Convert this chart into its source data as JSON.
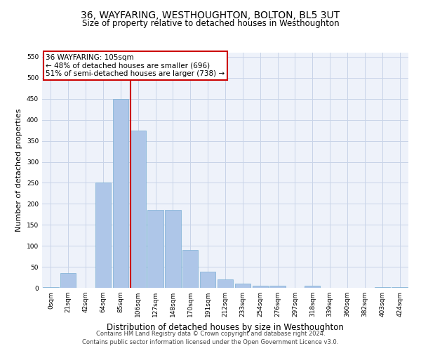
{
  "title": "36, WAYFARING, WESTHOUGHTON, BOLTON, BL5 3UT",
  "subtitle": "Size of property relative to detached houses in Westhoughton",
  "xlabel": "Distribution of detached houses by size in Westhoughton",
  "ylabel": "Number of detached properties",
  "bar_labels": [
    "0sqm",
    "21sqm",
    "42sqm",
    "64sqm",
    "85sqm",
    "106sqm",
    "127sqm",
    "148sqm",
    "170sqm",
    "191sqm",
    "212sqm",
    "233sqm",
    "254sqm",
    "276sqm",
    "297sqm",
    "318sqm",
    "339sqm",
    "360sqm",
    "382sqm",
    "403sqm",
    "424sqm"
  ],
  "bar_values": [
    2,
    35,
    0,
    250,
    450,
    375,
    185,
    185,
    90,
    38,
    20,
    10,
    5,
    5,
    0,
    5,
    0,
    0,
    0,
    2,
    2
  ],
  "bar_color": "#aec6e8",
  "bar_edgecolor": "#7aafd4",
  "grid_color": "#c8d4e8",
  "bg_color": "#eef2fa",
  "annotation_text_line1": "36 WAYFARING: 105sqm",
  "annotation_text_line2": "← 48% of detached houses are smaller (696)",
  "annotation_text_line3": "51% of semi-detached houses are larger (738) →",
  "annotation_box_facecolor": "#ffffff",
  "annotation_box_edgecolor": "#cc0000",
  "vline_color": "#cc0000",
  "vline_x_index": 5,
  "ylim": [
    0,
    560
  ],
  "yticks": [
    0,
    50,
    100,
    150,
    200,
    250,
    300,
    350,
    400,
    450,
    500,
    550
  ],
  "footer_line1": "Contains HM Land Registry data © Crown copyright and database right 2024.",
  "footer_line2": "Contains public sector information licensed under the Open Government Licence v3.0.",
  "title_fontsize": 10,
  "subtitle_fontsize": 8.5,
  "ylabel_fontsize": 8,
  "xlabel_fontsize": 8.5,
  "tick_fontsize": 6.5,
  "footer_fontsize": 6,
  "annot_fontsize": 7.5
}
